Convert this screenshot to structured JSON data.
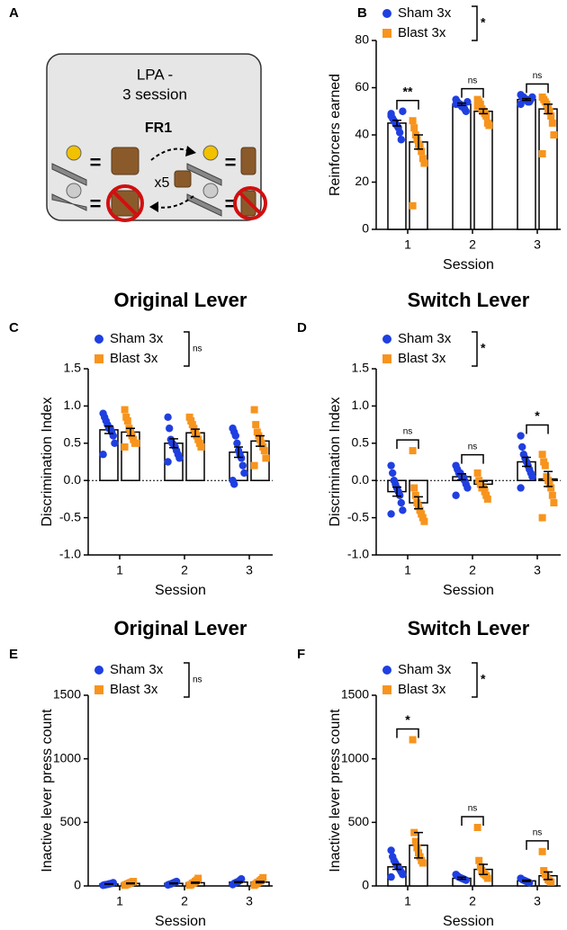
{
  "diagram": {
    "panel": "A",
    "title_lines": [
      "LPA -",
      "3 session"
    ],
    "schedule": "FR1",
    "multiplier": "x5",
    "equals": "="
  },
  "chart_data": [
    {
      "type": "bar",
      "panel": "B",
      "ylabel": "Reinforcers earned",
      "xlabel": "Session",
      "categories": [
        "1",
        "2",
        "3"
      ],
      "ylim": [
        0,
        80
      ],
      "yticks": [
        0,
        20,
        40,
        60,
        80
      ],
      "legend_sig": "*",
      "pair_labels": [
        "**",
        "ns",
        "ns"
      ],
      "series": [
        {
          "name": "Sham 3x",
          "color": "#1f3fe0",
          "marker": "circle",
          "values": [
            45,
            53,
            55
          ],
          "errors": [
            1.2,
            0.5,
            0.4
          ],
          "points": [
            [
              49,
              47,
              46,
              45,
              44,
              43,
              41,
              38,
              50,
              48
            ],
            [
              55,
              54,
              53,
              53,
              52,
              52,
              51,
              50,
              54,
              53
            ],
            [
              57,
              56,
              56,
              55,
              55,
              54,
              54,
              55,
              56,
              53
            ]
          ]
        },
        {
          "name": "Blast 3x",
          "color": "#f7941d",
          "marker": "square",
          "values": [
            37,
            50,
            51
          ],
          "errors": [
            3,
            1,
            2
          ],
          "points": [
            [
              46,
              43,
              40,
              38,
              36,
              35,
              33,
              30,
              28,
              10
            ],
            [
              55,
              54,
              53,
              51,
              50,
              49,
              48,
              45,
              44,
              52
            ],
            [
              56,
              55,
              54,
              53,
              51,
              50,
              48,
              45,
              40,
              32
            ]
          ]
        }
      ]
    },
    {
      "type": "bar",
      "panel": "C",
      "title": "Original Lever",
      "ylabel": "Discrimination Index",
      "xlabel": "Session",
      "categories": [
        "1",
        "2",
        "3"
      ],
      "ylim": [
        -1,
        1.5
      ],
      "yticks": [
        {
          "value": -1,
          "label": "-1.0"
        },
        {
          "value": -0.5,
          "label": "-0.5"
        },
        {
          "value": 0,
          "label": "0.0"
        },
        {
          "value": 0.5,
          "label": "0.5"
        },
        {
          "value": 1,
          "label": "1.0"
        },
        {
          "value": 1.5,
          "label": "1.5"
        }
      ],
      "zero_line": true,
      "legend_sig": "ns",
      "pair_labels": [
        null,
        null,
        null
      ],
      "series": [
        {
          "name": "Sham 3x",
          "color": "#1f3fe0",
          "marker": "circle",
          "values": [
            0.68,
            0.5,
            0.38
          ],
          "errors": [
            0.05,
            0.06,
            0.07
          ],
          "points": [
            [
              0.9,
              0.85,
              0.8,
              0.75,
              0.7,
              0.7,
              0.65,
              0.6,
              0.5,
              0.35
            ],
            [
              0.85,
              0.7,
              0.55,
              0.5,
              0.48,
              0.45,
              0.4,
              0.35,
              0.3,
              0.25
            ],
            [
              0.7,
              0.65,
              0.6,
              0.5,
              0.4,
              0.35,
              0.3,
              0.2,
              0.1,
              0,
              -0.05
            ]
          ]
        },
        {
          "name": "Blast 3x",
          "color": "#f7941d",
          "marker": "square",
          "values": [
            0.65,
            0.64,
            0.53
          ],
          "errors": [
            0.05,
            0.05,
            0.07
          ],
          "points": [
            [
              0.95,
              0.85,
              0.8,
              0.7,
              0.65,
              0.6,
              0.55,
              0.5,
              0.5,
              0.45
            ],
            [
              0.85,
              0.8,
              0.75,
              0.7,
              0.65,
              0.6,
              0.55,
              0.5,
              0.45
            ],
            [
              0.95,
              0.75,
              0.65,
              0.6,
              0.55,
              0.5,
              0.45,
              0.4,
              0.3,
              0.2
            ]
          ]
        }
      ]
    },
    {
      "type": "bar",
      "panel": "D",
      "title": "Switch Lever",
      "ylabel": "Discrimination Index",
      "xlabel": "Session",
      "categories": [
        "1",
        "2",
        "3"
      ],
      "ylim": [
        -1,
        1.5
      ],
      "yticks": [
        {
          "value": -1,
          "label": "-1.0"
        },
        {
          "value": -0.5,
          "label": "-0.5"
        },
        {
          "value": 0,
          "label": "0.0"
        },
        {
          "value": 0.5,
          "label": "0.5"
        },
        {
          "value": 1,
          "label": "1.0"
        },
        {
          "value": 1.5,
          "label": "1.5"
        }
      ],
      "zero_line": true,
      "legend_sig": "*",
      "pair_labels": [
        "ns",
        "ns",
        "*"
      ],
      "series": [
        {
          "name": "Sham 3x",
          "color": "#1f3fe0",
          "marker": "circle",
          "values": [
            -0.15,
            0.05,
            0.25
          ],
          "errors": [
            0.06,
            0.04,
            0.06
          ],
          "points": [
            [
              0.2,
              0.1,
              0,
              -0.05,
              -0.1,
              -0.15,
              -0.2,
              -0.3,
              -0.4,
              -0.45
            ],
            [
              0.2,
              0.15,
              0.1,
              0.1,
              0.05,
              0.05,
              0,
              -0.05,
              -0.1,
              -0.2
            ],
            [
              0.6,
              0.45,
              0.35,
              0.3,
              0.25,
              0.2,
              0.15,
              0.1,
              0.05,
              -0.1
            ]
          ]
        },
        {
          "name": "Blast 3x",
          "color": "#f7941d",
          "marker": "square",
          "values": [
            -0.3,
            -0.05,
            0.02
          ],
          "errors": [
            0.08,
            0.04,
            0.1
          ],
          "points": [
            [
              0.4,
              -0.1,
              -0.2,
              -0.3,
              -0.35,
              -0.4,
              -0.45,
              -0.5,
              -0.55
            ],
            [
              0.1,
              0,
              -0.05,
              -0.1,
              -0.1,
              -0.15,
              -0.2,
              -0.25
            ],
            [
              0.35,
              0.25,
              0.2,
              0.05,
              0,
              -0.05,
              -0.1,
              -0.2,
              -0.3,
              -0.5
            ]
          ]
        }
      ]
    },
    {
      "type": "bar",
      "panel": "E",
      "title": "Original Lever",
      "ylabel": "Inactive lever press count",
      "xlabel": "Session",
      "categories": [
        "1",
        "2",
        "3"
      ],
      "ylim": [
        0,
        1500
      ],
      "yticks": [
        0,
        500,
        1000,
        1500
      ],
      "legend_sig": "ns",
      "pair_labels": [
        null,
        null,
        null
      ],
      "series": [
        {
          "name": "Sham 3x",
          "color": "#1f3fe0",
          "marker": "circle",
          "values": [
            15,
            20,
            30
          ],
          "errors": [
            2,
            3,
            4
          ],
          "points": [
            [
              5,
              8,
              10,
              12,
              15,
              18,
              20,
              25
            ],
            [
              8,
              12,
              15,
              20,
              25,
              30,
              35
            ],
            [
              10,
              20,
              25,
              30,
              35,
              45,
              55
            ]
          ]
        },
        {
          "name": "Blast 3x",
          "color": "#f7941d",
          "marker": "square",
          "values": [
            20,
            25,
            30
          ],
          "errors": [
            3,
            4,
            5
          ],
          "points": [
            [
              5,
              10,
              15,
              20,
              25,
              30,
              35
            ],
            [
              5,
              10,
              20,
              25,
              35,
              45,
              60
            ],
            [
              5,
              15,
              25,
              30,
              40,
              50,
              65
            ]
          ]
        }
      ]
    },
    {
      "type": "bar",
      "panel": "F",
      "title": "Switch Lever",
      "ylabel": "Inactive lever press count",
      "xlabel": "Session",
      "categories": [
        "1",
        "2",
        "3"
      ],
      "ylim": [
        0,
        1500
      ],
      "yticks": [
        0,
        500,
        1000,
        1500
      ],
      "legend_sig": "*",
      "pair_labels": [
        "*",
        "ns",
        "ns"
      ],
      "series": [
        {
          "name": "Sham 3x",
          "color": "#1f3fe0",
          "marker": "circle",
          "values": [
            150,
            60,
            40
          ],
          "errors": [
            20,
            8,
            5
          ],
          "points": [
            [
              280,
              230,
              200,
              180,
              160,
              150,
              130,
              110,
              90,
              70
            ],
            [
              90,
              80,
              70,
              65,
              60,
              55,
              50,
              45
            ],
            [
              60,
              50,
              45,
              40,
              35,
              30,
              25
            ]
          ]
        },
        {
          "name": "Blast 3x",
          "color": "#f7941d",
          "marker": "square",
          "values": [
            320,
            130,
            80
          ],
          "errors": [
            100,
            40,
            30
          ],
          "points": [
            [
              1150,
              420,
              350,
              300,
              260,
              230,
              200,
              180
            ],
            [
              460,
              200,
              150,
              120,
              100,
              90,
              80,
              60
            ],
            [
              270,
              120,
              90,
              70,
              50,
              40,
              30
            ]
          ]
        }
      ]
    }
  ]
}
